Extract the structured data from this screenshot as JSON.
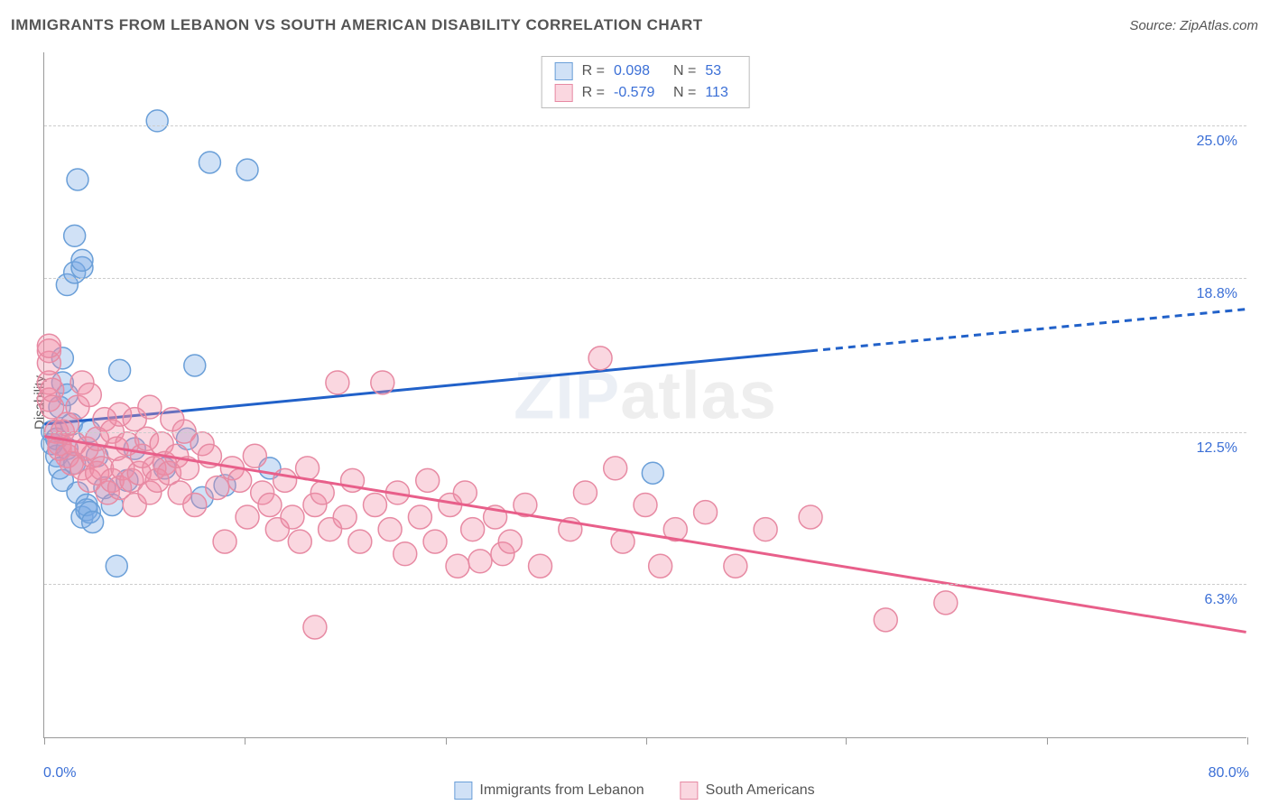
{
  "title": "IMMIGRANTS FROM LEBANON VS SOUTH AMERICAN DISABILITY CORRELATION CHART",
  "source": "Source: ZipAtlas.com",
  "watermark_a": "ZIP",
  "watermark_b": "atlas",
  "ylabel": "Disability",
  "chart": {
    "type": "scatter",
    "background_color": "#ffffff",
    "grid_color": "#cccccc",
    "x_range": [
      0,
      80
    ],
    "y_range": [
      0,
      28
    ],
    "x_ticks": [
      0,
      13.3,
      26.7,
      40,
      53.3,
      66.7,
      80
    ],
    "x_tick_labels": {
      "0": "0.0%",
      "80": "80.0%"
    },
    "y_gridlines": [
      6.3,
      12.5,
      18.8,
      25.0
    ],
    "y_tick_labels": [
      "6.3%",
      "12.5%",
      "18.8%",
      "25.0%"
    ],
    "series": [
      {
        "name": "Immigrants from Lebanon",
        "color_fill": "rgba(120,170,230,0.35)",
        "color_stroke": "#6a9fd8",
        "trend_color": "#2161c9",
        "trend_dash_after": 51,
        "r_label": "R =",
        "r_value": "0.098",
        "n_label": "N =",
        "n_value": "53",
        "trend": {
          "x1": 0,
          "y1": 12.8,
          "x2": 80,
          "y2": 17.5
        },
        "marker_r": 12,
        "points": [
          [
            0.5,
            12.0
          ],
          [
            0.5,
            12.5
          ],
          [
            0.8,
            11.5
          ],
          [
            0.8,
            12.2
          ],
          [
            1.0,
            11.0
          ],
          [
            1.0,
            13.5
          ],
          [
            1.2,
            10.5
          ],
          [
            1.2,
            14.5
          ],
          [
            1.2,
            15.5
          ],
          [
            1.5,
            11.8
          ],
          [
            1.5,
            14.0
          ],
          [
            1.5,
            18.5
          ],
          [
            1.8,
            12.8
          ],
          [
            2.0,
            19.0
          ],
          [
            2.0,
            11.2
          ],
          [
            2.2,
            10.0
          ],
          [
            2.5,
            9.0
          ],
          [
            2.5,
            19.2
          ],
          [
            2.5,
            19.5
          ],
          [
            2.8,
            9.5
          ],
          [
            2.8,
            9.3
          ],
          [
            3.0,
            9.2
          ],
          [
            2.0,
            20.5
          ],
          [
            2.2,
            22.8
          ],
          [
            3.0,
            12.5
          ],
          [
            3.2,
            8.8
          ],
          [
            3.5,
            11.5
          ],
          [
            4.0,
            10.2
          ],
          [
            4.5,
            9.5
          ],
          [
            4.8,
            7.0
          ],
          [
            5.0,
            15.0
          ],
          [
            5.5,
            10.5
          ],
          [
            6.0,
            11.8
          ],
          [
            7.5,
            25.2
          ],
          [
            8.0,
            11.0
          ],
          [
            9.5,
            12.2
          ],
          [
            10.0,
            15.2
          ],
          [
            10.5,
            9.8
          ],
          [
            11.0,
            23.5
          ],
          [
            12.0,
            10.3
          ],
          [
            13.5,
            23.2
          ],
          [
            15.0,
            11.0
          ],
          [
            40.5,
            10.8
          ]
        ]
      },
      {
        "name": "South Americans",
        "color_fill": "rgba(240,140,165,0.35)",
        "color_stroke": "#e78aa3",
        "trend_color": "#e85f8a",
        "trend_dash_after": 100,
        "r_label": "R =",
        "r_value": "-0.579",
        "n_label": "N =",
        "n_value": "113",
        "trend": {
          "x1": 0,
          "y1": 12.3,
          "x2": 80,
          "y2": 4.3
        },
        "marker_r": 13,
        "points": [
          [
            0.3,
            14.5
          ],
          [
            0.3,
            15.3
          ],
          [
            0.3,
            15.8
          ],
          [
            0.3,
            16.0
          ],
          [
            0.3,
            13.8
          ],
          [
            0.5,
            14.2
          ],
          [
            0.5,
            13.5
          ],
          [
            0.8,
            12.5
          ],
          [
            1.0,
            12.0
          ],
          [
            1.0,
            11.8
          ],
          [
            1.2,
            12.5
          ],
          [
            1.5,
            11.5
          ],
          [
            1.5,
            12.8
          ],
          [
            1.8,
            11.2
          ],
          [
            2.0,
            12.0
          ],
          [
            2.2,
            13.5
          ],
          [
            2.5,
            11.0
          ],
          [
            2.5,
            14.5
          ],
          [
            2.8,
            11.8
          ],
          [
            3.0,
            10.5
          ],
          [
            3.0,
            14.0
          ],
          [
            3.2,
            11.5
          ],
          [
            3.5,
            10.8
          ],
          [
            3.5,
            12.2
          ],
          [
            3.8,
            11.0
          ],
          [
            4.0,
            13.0
          ],
          [
            4.2,
            10.0
          ],
          [
            4.5,
            12.5
          ],
          [
            4.5,
            10.5
          ],
          [
            4.8,
            11.8
          ],
          [
            5.0,
            10.2
          ],
          [
            5.0,
            13.2
          ],
          [
            5.2,
            11.0
          ],
          [
            5.5,
            12.0
          ],
          [
            5.8,
            10.5
          ],
          [
            6.0,
            9.5
          ],
          [
            6.0,
            13.0
          ],
          [
            6.3,
            10.8
          ],
          [
            6.5,
            11.5
          ],
          [
            6.8,
            12.2
          ],
          [
            7.0,
            10.0
          ],
          [
            7.0,
            13.5
          ],
          [
            7.3,
            11.0
          ],
          [
            7.5,
            10.5
          ],
          [
            7.8,
            12.0
          ],
          [
            8.0,
            11.2
          ],
          [
            8.3,
            10.8
          ],
          [
            8.5,
            13.0
          ],
          [
            8.8,
            11.5
          ],
          [
            9.0,
            10.0
          ],
          [
            9.3,
            12.5
          ],
          [
            9.5,
            11.0
          ],
          [
            10.0,
            9.5
          ],
          [
            10.5,
            12.0
          ],
          [
            11.0,
            11.5
          ],
          [
            11.5,
            10.2
          ],
          [
            12.0,
            8.0
          ],
          [
            12.5,
            11.0
          ],
          [
            13.0,
            10.5
          ],
          [
            13.5,
            9.0
          ],
          [
            14.0,
            11.5
          ],
          [
            14.5,
            10.0
          ],
          [
            15.0,
            9.5
          ],
          [
            15.5,
            8.5
          ],
          [
            16.0,
            10.5
          ],
          [
            16.5,
            9.0
          ],
          [
            17.0,
            8.0
          ],
          [
            17.5,
            11.0
          ],
          [
            18.0,
            9.5
          ],
          [
            18.5,
            10.0
          ],
          [
            19.0,
            8.5
          ],
          [
            19.5,
            14.5
          ],
          [
            20.0,
            9.0
          ],
          [
            20.5,
            10.5
          ],
          [
            21.0,
            8.0
          ],
          [
            22.0,
            9.5
          ],
          [
            22.5,
            14.5
          ],
          [
            23.0,
            8.5
          ],
          [
            23.5,
            10.0
          ],
          [
            24.0,
            7.5
          ],
          [
            25.0,
            9.0
          ],
          [
            25.5,
            10.5
          ],
          [
            26.0,
            8.0
          ],
          [
            27.0,
            9.5
          ],
          [
            27.5,
            7.0
          ],
          [
            28.0,
            10.0
          ],
          [
            28.5,
            8.5
          ],
          [
            29.0,
            7.2
          ],
          [
            30.0,
            9.0
          ],
          [
            30.5,
            7.5
          ],
          [
            31.0,
            8.0
          ],
          [
            32.0,
            9.5
          ],
          [
            33.0,
            7.0
          ],
          [
            35.0,
            8.5
          ],
          [
            36.0,
            10.0
          ],
          [
            37.0,
            15.5
          ],
          [
            38.0,
            11.0
          ],
          [
            38.5,
            8.0
          ],
          [
            40.0,
            9.5
          ],
          [
            41.0,
            7.0
          ],
          [
            42.0,
            8.5
          ],
          [
            44.0,
            9.2
          ],
          [
            46.0,
            7.0
          ],
          [
            48.0,
            8.5
          ],
          [
            51.0,
            9.0
          ],
          [
            56.0,
            4.8
          ],
          [
            60.0,
            5.5
          ],
          [
            18.0,
            4.5
          ]
        ]
      }
    ]
  }
}
